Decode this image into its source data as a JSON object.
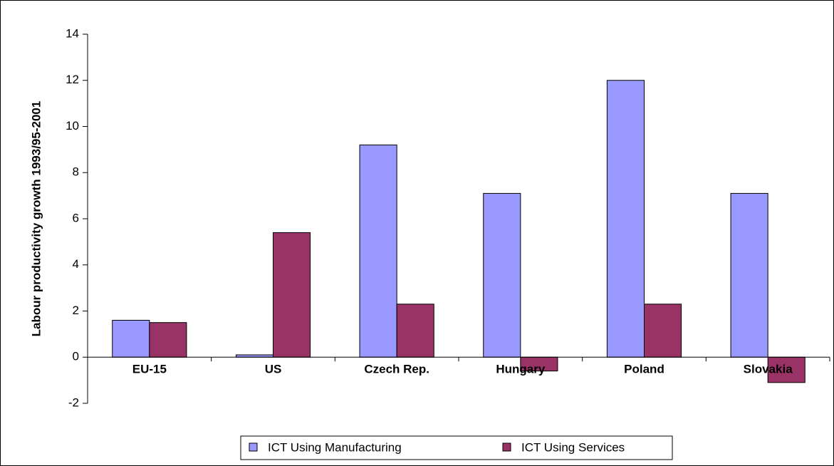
{
  "chart_data": {
    "type": "bar",
    "y_label": "Labour productivity growth 1993/95-2001",
    "categories": [
      "EU-15",
      "US",
      "Czech Rep.",
      "Hungary",
      "Poland",
      "Slovakia"
    ],
    "series": [
      {
        "name": "ICT Using Manufacturing",
        "color": "#9999ff",
        "values": [
          1.6,
          0.1,
          9.2,
          7.1,
          12.0,
          7.1
        ]
      },
      {
        "name": "ICT Using Services",
        "color": "#993366",
        "values": [
          1.5,
          5.4,
          2.3,
          -0.6,
          2.3,
          -1.1
        ]
      }
    ],
    "ylim": [
      -2,
      14
    ],
    "yticks": [
      -2,
      0,
      2,
      4,
      6,
      8,
      10,
      12,
      14
    ],
    "legend": "bottom"
  }
}
